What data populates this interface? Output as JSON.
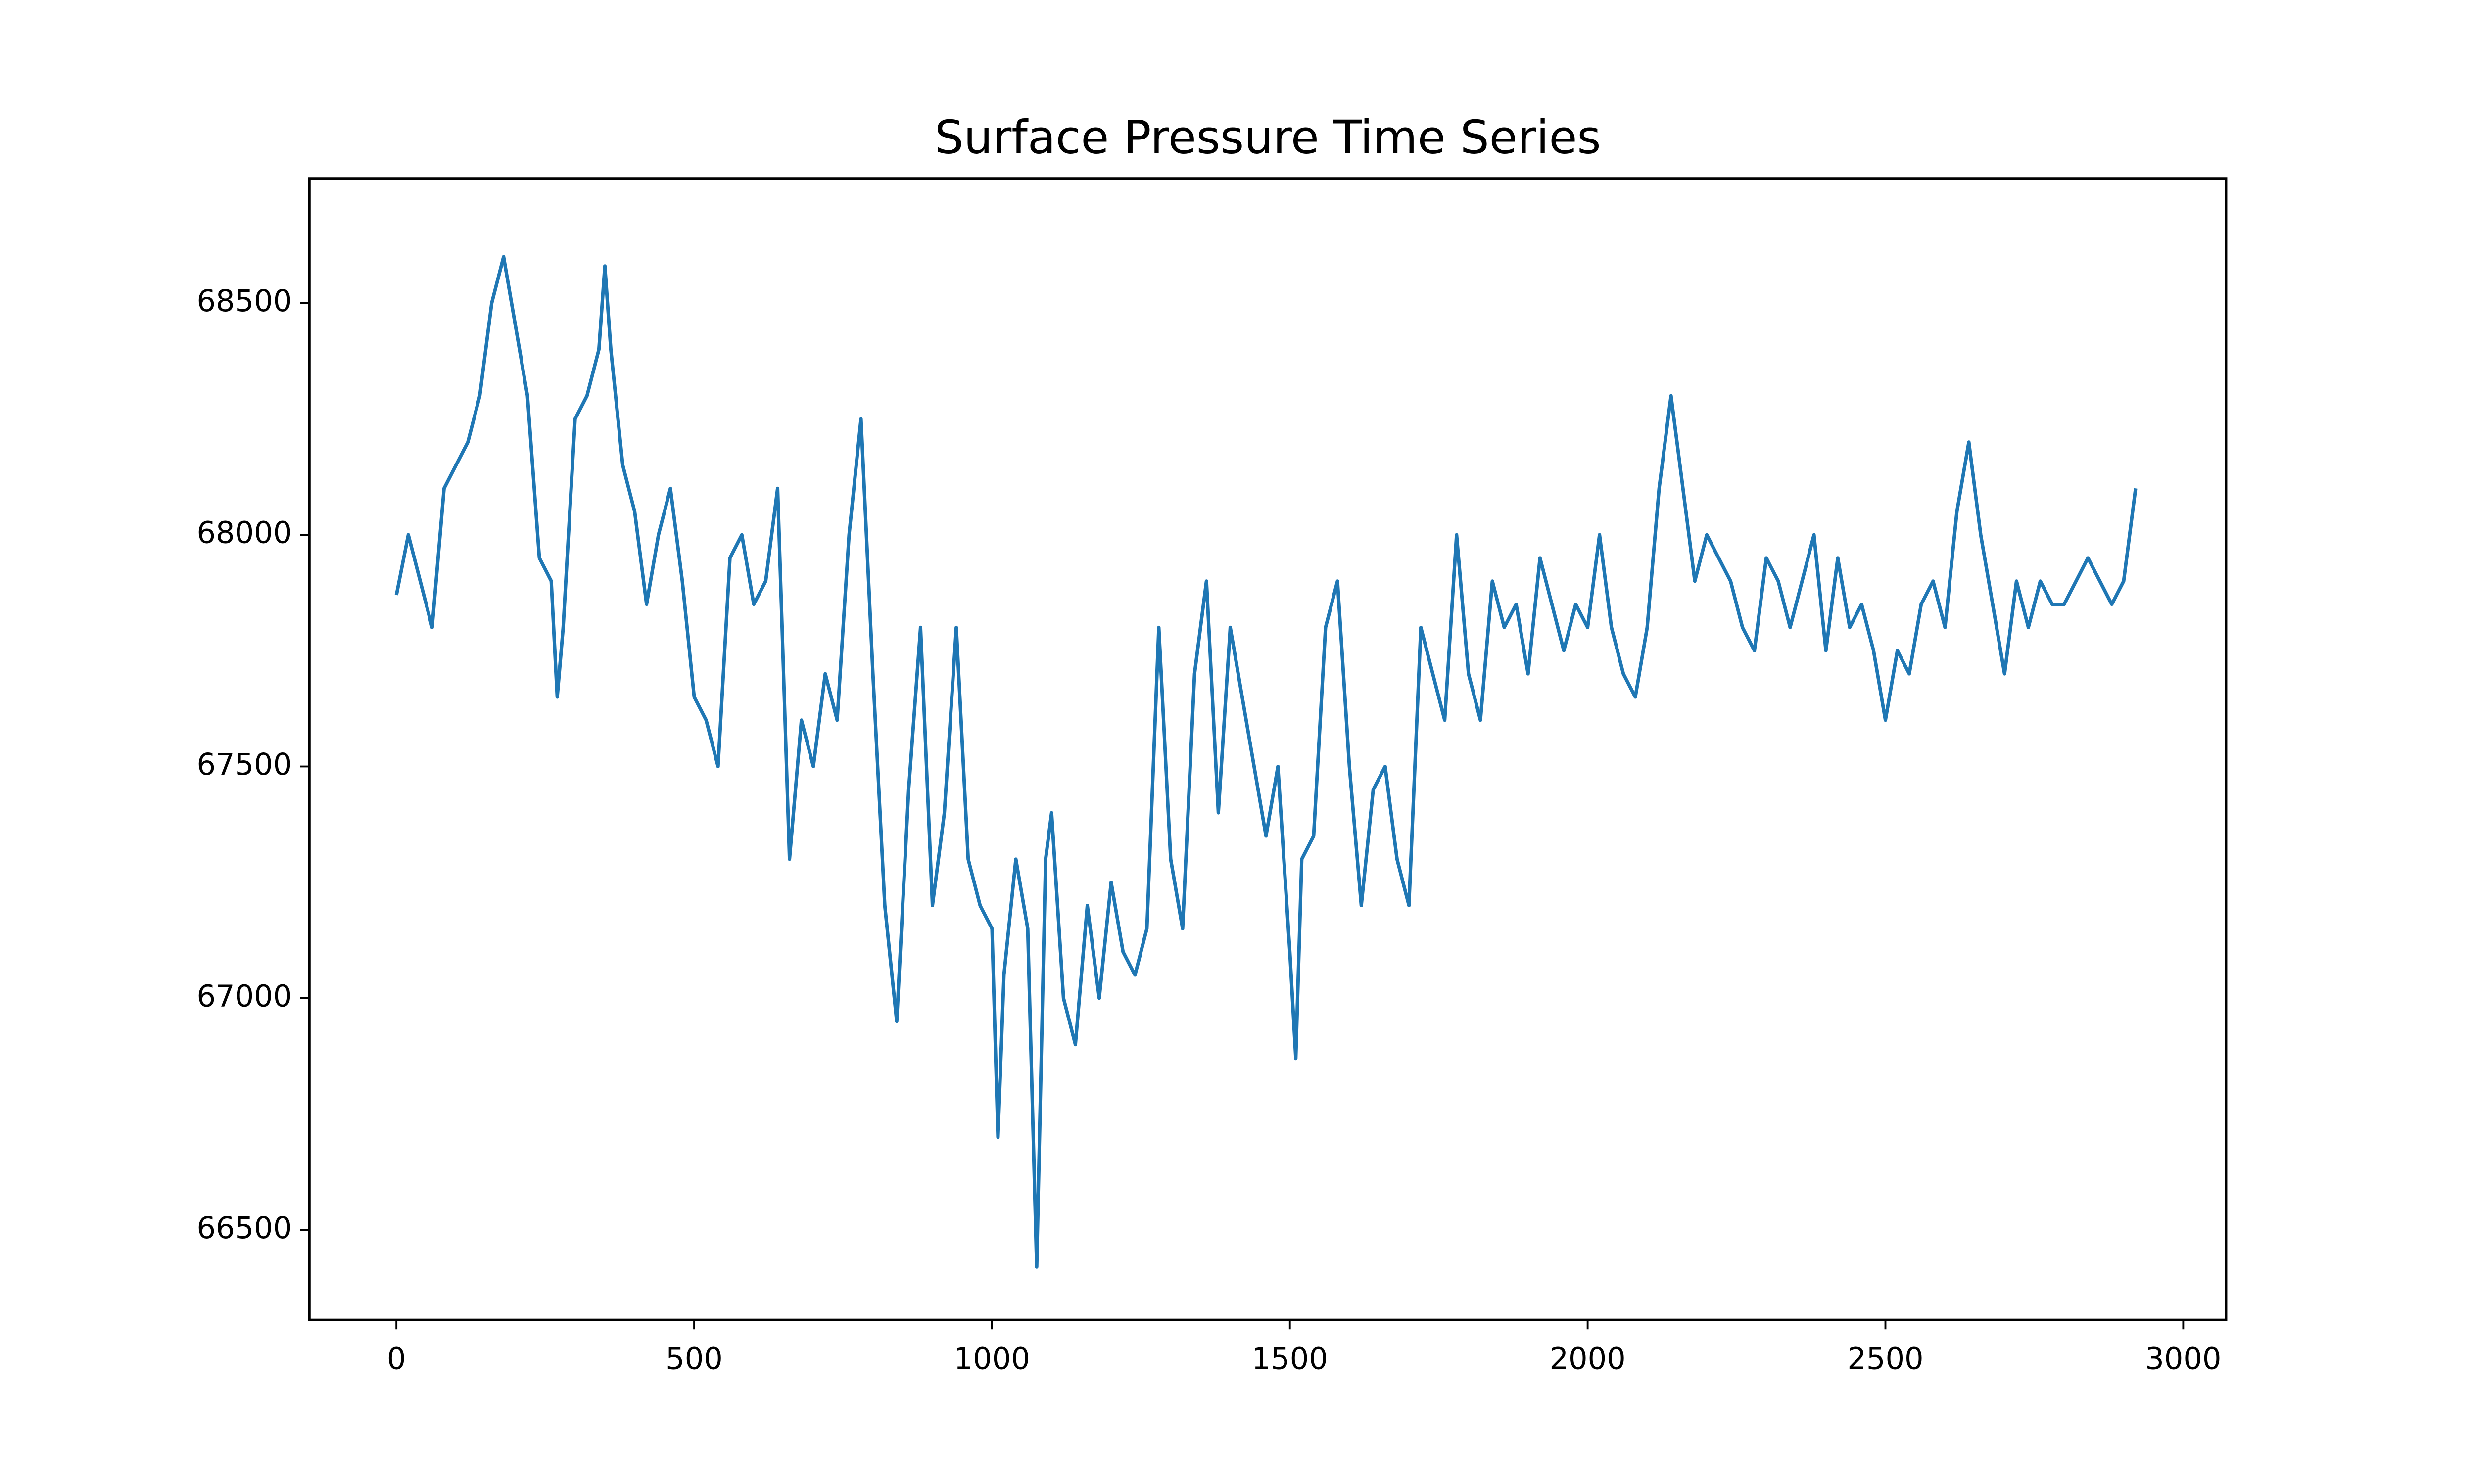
{
  "chart_data": {
    "type": "line",
    "title": "Surface Pressure Time Series",
    "color": "#1f77b4",
    "xlim": [
      -146,
      3072
    ],
    "ylim": [
      66306,
      68769
    ],
    "xticks": [
      0,
      500,
      1000,
      1500,
      2000,
      2500,
      3000
    ],
    "yticks": [
      66500,
      67000,
      67500,
      68000,
      68500
    ],
    "x": [
      0,
      20,
      40,
      60,
      80,
      100,
      120,
      140,
      160,
      180,
      200,
      220,
      240,
      260,
      270,
      280,
      300,
      320,
      340,
      350,
      360,
      380,
      400,
      420,
      440,
      460,
      480,
      500,
      520,
      540,
      560,
      580,
      600,
      620,
      640,
      660,
      680,
      700,
      720,
      740,
      760,
      780,
      800,
      820,
      840,
      860,
      880,
      900,
      920,
      940,
      960,
      980,
      1000,
      1010,
      1020,
      1040,
      1060,
      1075,
      1090,
      1100,
      1120,
      1140,
      1160,
      1180,
      1200,
      1220,
      1240,
      1260,
      1280,
      1300,
      1320,
      1340,
      1360,
      1380,
      1400,
      1420,
      1440,
      1460,
      1480,
      1500,
      1510,
      1520,
      1540,
      1560,
      1580,
      1600,
      1620,
      1640,
      1660,
      1680,
      1700,
      1720,
      1740,
      1760,
      1780,
      1800,
      1820,
      1840,
      1860,
      1880,
      1900,
      1920,
      1940,
      1960,
      1980,
      2000,
      2020,
      2040,
      2060,
      2080,
      2100,
      2120,
      2140,
      2160,
      2180,
      2200,
      2220,
      2240,
      2260,
      2280,
      2300,
      2320,
      2340,
      2360,
      2380,
      2400,
      2420,
      2440,
      2460,
      2480,
      2500,
      2520,
      2540,
      2560,
      2580,
      2600,
      2620,
      2640,
      2660,
      2680,
      2700,
      2720,
      2740,
      2760,
      2780,
      2800,
      2820,
      2840,
      2860,
      2880,
      2900,
      2920
    ],
    "values": [
      67870,
      68000,
      67900,
      67800,
      68100,
      68150,
      68200,
      68300,
      68500,
      68600,
      68450,
      68300,
      67950,
      67900,
      67650,
      67800,
      68250,
      68300,
      68400,
      68580,
      68400,
      68150,
      68050,
      67850,
      68000,
      68100,
      67900,
      67650,
      67600,
      67500,
      67950,
      68000,
      67850,
      67900,
      68100,
      67300,
      67600,
      67500,
      67700,
      67600,
      68000,
      68250,
      67700,
      67200,
      66950,
      67450,
      67800,
      67200,
      67400,
      67800,
      67300,
      67200,
      67150,
      66700,
      67050,
      67300,
      67150,
      66420,
      67300,
      67400,
      67000,
      66900,
      67200,
      67000,
      67250,
      67100,
      67050,
      67150,
      67800,
      67300,
      67150,
      67700,
      67900,
      67400,
      67800,
      67650,
      67500,
      67350,
      67500,
      67100,
      66870,
      67300,
      67350,
      67800,
      67900,
      67500,
      67200,
      67450,
      67500,
      67300,
      67200,
      67800,
      67700,
      67600,
      68000,
      67700,
      67600,
      67900,
      67800,
      67850,
      67700,
      67950,
      67850,
      67750,
      67850,
      67800,
      68000,
      67800,
      67700,
      67650,
      67800,
      68100,
      68300,
      68100,
      67900,
      68000,
      67950,
      67900,
      67800,
      67750,
      67950,
      67900,
      67800,
      67900,
      68000,
      67750,
      67950,
      67800,
      67850,
      67750,
      67600,
      67750,
      67700,
      67850,
      67900,
      67800,
      68050,
      68200,
      68000,
      67850,
      67700,
      67900,
      67800,
      67900,
      67850,
      67850,
      67900,
      67950,
      67900,
      67850,
      67900,
      68100
    ]
  }
}
